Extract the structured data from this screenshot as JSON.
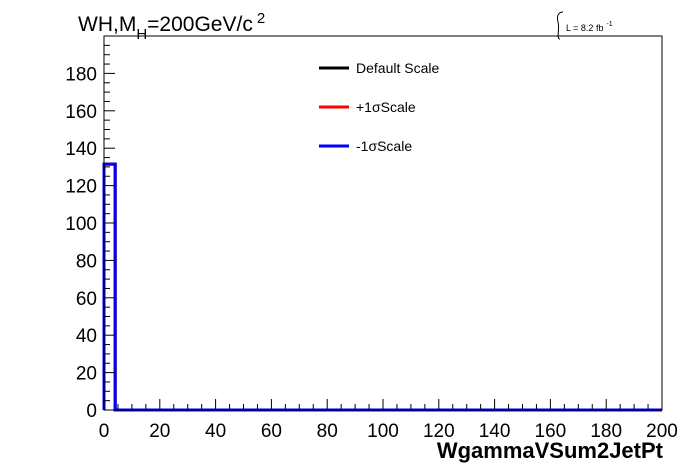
{
  "chart_data": {
    "type": "line",
    "title": "WH,M",
    "title_subscript": "H",
    "title_rest": "=200GeV/c",
    "title_superscript": "2",
    "lumi_label": "L = 8.2 fb",
    "lumi_superscript": "-1",
    "xlabel": "WgammaVSum2JetPt",
    "ylabel": "",
    "xlim": [
      0,
      200
    ],
    "ylim": [
      0,
      200
    ],
    "x_ticks": [
      "0",
      "20",
      "40",
      "60",
      "80",
      "100",
      "120",
      "140",
      "160",
      "180",
      "200"
    ],
    "y_ticks": [
      "0",
      "20",
      "40",
      "60",
      "80",
      "100",
      "120",
      "140",
      "160",
      "180"
    ],
    "grid": false,
    "legend_position": "top-center",
    "bin_edges": [
      0,
      4,
      200
    ],
    "series": [
      {
        "name": "Default Scale",
        "color": "#000000",
        "values": [
          131.5,
          0
        ]
      },
      {
        "name": "+1σScale",
        "color": "#ff0000",
        "values": [
          131.5,
          0
        ]
      },
      {
        "name": "-1σScale",
        "color": "#0000ff",
        "values": [
          131.5,
          0
        ]
      }
    ]
  }
}
